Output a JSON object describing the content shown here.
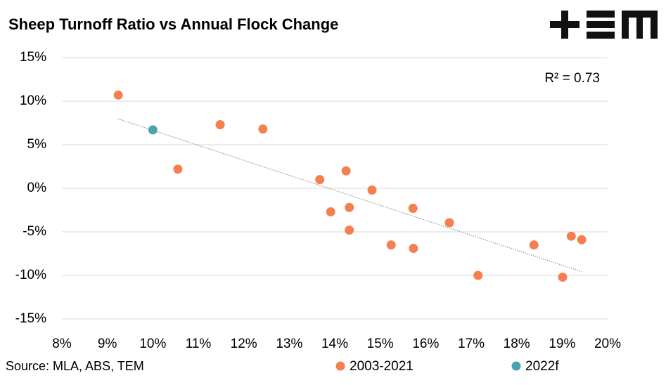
{
  "chart_data": {
    "type": "scatter",
    "title": "Sheep Turnoff Ratio vs Annual Flock Change",
    "annotation": "R² = 0.73",
    "source": "Source: MLA, ABS, TEM",
    "series": [
      {
        "name": "2003-2021",
        "color": "#f4804f",
        "x": [
          9.24,
          10.55,
          11.48,
          12.42,
          13.67,
          14.25,
          13.91,
          14.32,
          14.32,
          14.82,
          15.24,
          15.72,
          15.73,
          16.52,
          17.15,
          18.38,
          19.2,
          19.43,
          19.01
        ],
        "y": [
          10.7,
          2.2,
          7.3,
          6.8,
          1.0,
          2.0,
          -2.7,
          -2.2,
          -4.8,
          -0.2,
          -6.5,
          -2.3,
          -6.9,
          -3.95,
          -10.0,
          -6.5,
          -5.5,
          -5.9,
          -10.2
        ]
      },
      {
        "name": "2022f",
        "color": "#4ba3b0",
        "x": [
          10.0
        ],
        "y": [
          6.7
        ]
      }
    ],
    "xlim": [
      8,
      20
    ],
    "ylim": [
      -15,
      15
    ],
    "xticks": [
      {
        "value": 8,
        "label": "8%"
      },
      {
        "value": 9,
        "label": "9%"
      },
      {
        "value": 10,
        "label": "10%"
      },
      {
        "value": 11,
        "label": "11%"
      },
      {
        "value": 12,
        "label": "12%"
      },
      {
        "value": 13,
        "label": "13%"
      },
      {
        "value": 14,
        "label": "14%"
      },
      {
        "value": 15,
        "label": "15%"
      },
      {
        "value": 16,
        "label": "16%"
      },
      {
        "value": 17,
        "label": "17%"
      },
      {
        "value": 18,
        "label": "18%"
      },
      {
        "value": 19,
        "label": "19%"
      },
      {
        "value": 20,
        "label": "20%"
      }
    ],
    "yticks": [
      {
        "value": -15,
        "label": "-15%"
      },
      {
        "value": -10,
        "label": "-10%"
      },
      {
        "value": -5,
        "label": "-5%"
      },
      {
        "value": 0,
        "label": "0%"
      },
      {
        "value": 5,
        "label": "5%"
      },
      {
        "value": 10,
        "label": "10%"
      },
      {
        "value": 15,
        "label": "15%"
      }
    ],
    "grid": true
  }
}
